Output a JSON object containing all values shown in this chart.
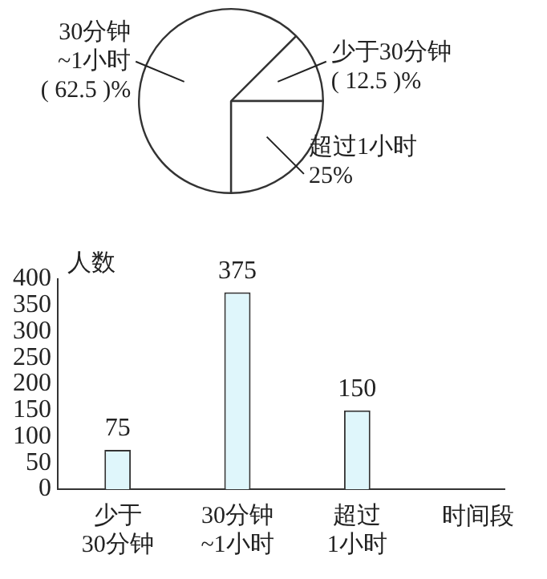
{
  "chart_data": [
    {
      "type": "pie",
      "categories": [
        "少于30分钟",
        "超过1小时",
        "30分钟~1小时"
      ],
      "values": [
        12.5,
        25,
        62.5
      ],
      "colors": [
        "#ffffff",
        "#ffffff",
        "#ffffff"
      ],
      "value_labels": [
        "( 12.5 )%",
        "25%",
        "( 62.5 )%"
      ]
    },
    {
      "type": "bar",
      "categories": [
        "少于30分钟",
        "30分钟~1小时",
        "超过1小时"
      ],
      "values": [
        75,
        375,
        150
      ],
      "color": "#dff6fb",
      "xlabel": "时间段",
      "ylabel": "人数",
      "ylim": [
        0,
        400
      ],
      "yticks": [
        0,
        50,
        100,
        150,
        200,
        250,
        300,
        350,
        400
      ],
      "data_labels": true
    }
  ]
}
